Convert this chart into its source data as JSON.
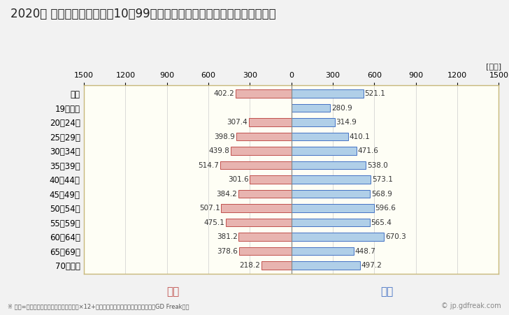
{
  "title": "2020年 民間企業（従業者数10～99人）フルタイム労働者の男女別平均年収",
  "unit_label": "[万円]",
  "categories": [
    "全体",
    "19歳以下",
    "20～24歳",
    "25～29歳",
    "30～34歳",
    "35～39歳",
    "40～44歳",
    "45～49歳",
    "50～54歳",
    "55～59歳",
    "60～64歳",
    "65～69歳",
    "70歳以上"
  ],
  "female_values": [
    402.2,
    0,
    307.4,
    398.9,
    439.8,
    514.7,
    301.6,
    384.2,
    507.1,
    475.1,
    381.2,
    378.6,
    218.2
  ],
  "male_values": [
    521.1,
    280.9,
    314.9,
    410.1,
    471.6,
    538.0,
    573.1,
    568.9,
    596.6,
    565.4,
    670.3,
    448.7,
    497.2
  ],
  "female_color": "#e8b4b0",
  "male_color": "#b0cfe8",
  "female_label": "女性",
  "male_label": "男性",
  "female_label_color": "#c0504d",
  "male_label_color": "#4472c4",
  "female_edge_color": "#c0504d",
  "male_edge_color": "#4472c4",
  "xlim": 1500,
  "background_color": "#f2f2f2",
  "plot_bg_color": "#fefef5",
  "footnote": "※ 年収=「きまって支給する現金給与額」×12+「年間賞与その他特別給与額」としてGD Freak推計",
  "watermark": "© jp.gdfreak.com",
  "title_fontsize": 12,
  "bar_height": 0.55,
  "grid_color": "#cccccc",
  "border_color": "#c8b87a",
  "center_line_color": "#888888"
}
